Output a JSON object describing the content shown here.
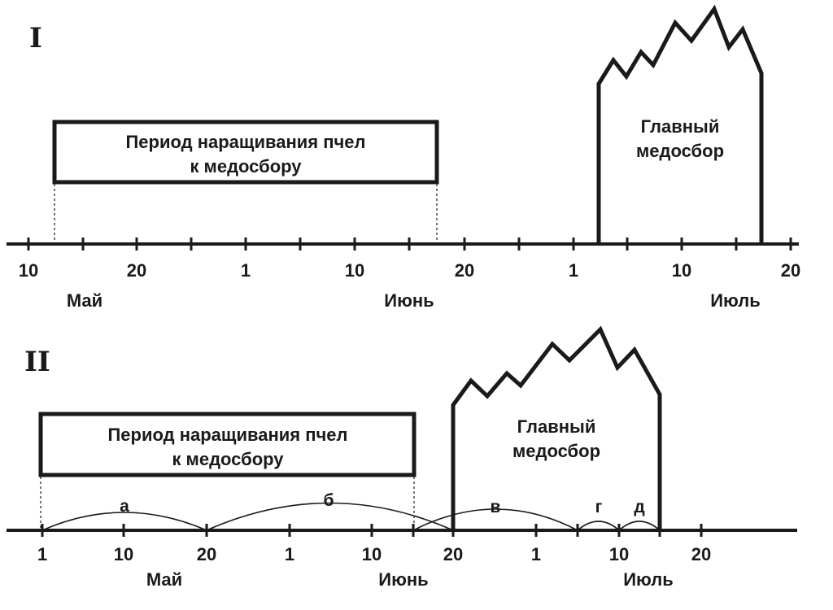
{
  "diagrams": [
    {
      "roman": "I",
      "box_lines": [
        "Период наращивания пчел",
        "к медосбору"
      ],
      "flow_lines": [
        "Главный",
        "медосбор"
      ],
      "tick_labels": [
        "10",
        "20",
        "1",
        "10",
        "20",
        "1",
        "10",
        "20"
      ],
      "months": [
        "Май",
        "Июнь",
        "Июль"
      ]
    },
    {
      "roman": "II",
      "box_lines": [
        "Период наращивания пчел",
        "к медосбору"
      ],
      "flow_lines": [
        "Главный",
        "медосбор"
      ],
      "tick_labels": [
        "1",
        "10",
        "20",
        "1",
        "10",
        "20",
        "1",
        "10",
        "20"
      ],
      "months": [
        "Май",
        "Июнь",
        "Июль"
      ],
      "arc_labels": [
        "а",
        "б",
        "в",
        "г",
        "д"
      ]
    }
  ]
}
